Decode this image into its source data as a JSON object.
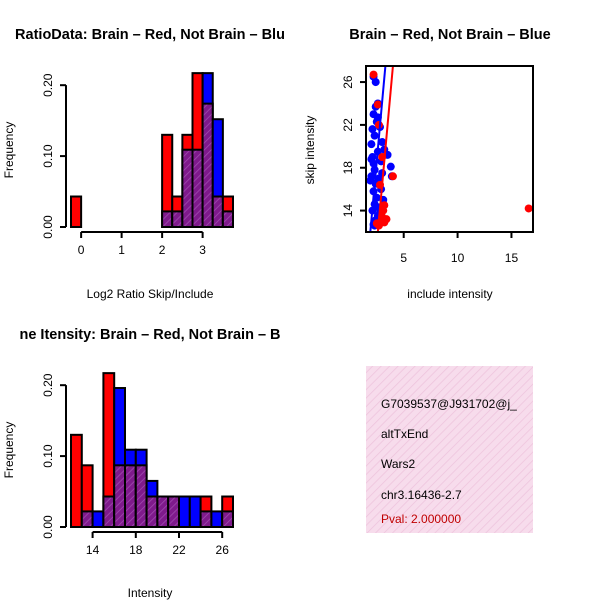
{
  "colors": {
    "red": "#ff0000",
    "blue": "#0000ff",
    "purple": "#7f1a8c",
    "hatch": "#a04ab0",
    "panel_bg": "#f7dcec",
    "panel_hatch": "#eec3dc",
    "pval": "#c00000"
  },
  "chart_data": [
    {
      "type": "bar",
      "title": "RatioData: Brain – Red, Not Brain – Blu",
      "xlabel": "Log2 Ratio Skip/Include",
      "ylabel": "Frequency",
      "xlim": [
        -0.25,
        3.75
      ],
      "ylim": [
        0,
        0.22
      ],
      "bin_width": 0.25,
      "x_ticks": [
        0,
        1,
        2,
        3
      ],
      "x_tick_labels": [
        "0",
        "1",
        "2",
        "3"
      ],
      "y_ticks": [
        0,
        0.1,
        0.2
      ],
      "y_tick_labels": [
        "0.00",
        "0.10",
        "0.20"
      ],
      "bin_starts": [
        -0.25,
        2.0,
        2.25,
        2.5,
        2.75,
        3.0,
        3.25,
        3.5
      ],
      "series": [
        {
          "name": "Brain",
          "color": "red",
          "values": [
            0.043,
            0.13,
            0.043,
            0.13,
            0.217,
            0.174,
            0.043,
            0.043
          ]
        },
        {
          "name": "Not Brain",
          "color": "blue",
          "values": [
            0,
            0.022,
            0.022,
            0.109,
            0.109,
            0.217,
            0.152,
            0.022
          ]
        }
      ]
    },
    {
      "type": "scatter",
      "title": "Brain – Red, Not Brain – Blue",
      "xlabel": "include intensity",
      "ylabel": "skip intensity",
      "xlim": [
        1.5,
        17
      ],
      "ylim": [
        12,
        27.5
      ],
      "x_ticks": [
        5,
        10,
        15
      ],
      "x_tick_labels": [
        "5",
        "10",
        "15"
      ],
      "y_ticks": [
        14,
        18,
        22,
        26
      ],
      "y_tick_labels": [
        "14",
        "18",
        "22",
        "26"
      ],
      "series": [
        {
          "name": "Not Brain",
          "color": "blue",
          "points": [
            [
              2.1,
              19
            ],
            [
              2.2,
              18.4
            ],
            [
              2.3,
              17.8
            ],
            [
              2.0,
              17.2
            ],
            [
              2.4,
              16.5
            ],
            [
              2.2,
              15.8
            ],
            [
              2.5,
              15.2
            ],
            [
              2.3,
              14.6
            ],
            [
              2.1,
              14.0
            ],
            [
              2.6,
              13.5
            ],
            [
              2.4,
              13.1
            ],
            [
              2.2,
              12.7
            ],
            [
              2.0,
              20.2
            ],
            [
              2.3,
              21.0
            ],
            [
              2.1,
              21.6
            ],
            [
              2.5,
              22.3
            ],
            [
              2.2,
              23.0
            ],
            [
              2.4,
              23.7
            ],
            [
              2.6,
              24.0
            ],
            [
              2.8,
              21.8
            ],
            [
              3.0,
              20.4
            ],
            [
              3.2,
              19.7
            ],
            [
              3.5,
              19.2
            ],
            [
              3.8,
              18.1
            ],
            [
              3.9,
              17.2
            ],
            [
              2.9,
              18.6
            ],
            [
              2.7,
              17.0
            ],
            [
              2.9,
              16.0
            ],
            [
              3.1,
              15.0
            ],
            [
              2.7,
              14.3
            ],
            [
              2.5,
              12.9
            ],
            [
              2.3,
              12.6
            ],
            [
              2.0,
              18.8
            ],
            [
              2.6,
              19.5
            ],
            [
              2.2,
              26.5
            ],
            [
              2.4,
              26.0
            ],
            [
              1.9,
              16.8
            ],
            [
              2.8,
              13.8
            ],
            [
              3.0,
              17.5
            ],
            [
              2.6,
              22.7
            ]
          ]
        },
        {
          "name": "Brain",
          "color": "red",
          "points": [
            [
              2.2,
              26.7
            ],
            [
              2.6,
              23.9
            ],
            [
              2.7,
              22.0
            ],
            [
              3.0,
              19.0
            ],
            [
              2.8,
              16.4
            ],
            [
              3.2,
              14.5
            ],
            [
              3.0,
              13.4
            ],
            [
              2.9,
              13.0
            ],
            [
              3.2,
              12.9
            ],
            [
              2.7,
              12.6
            ],
            [
              3.4,
              13.2
            ],
            [
              4.0,
              17.2
            ],
            [
              16.6,
              14.2
            ],
            [
              2.5,
              12.8
            ],
            [
              3.1,
              14.0
            ]
          ]
        }
      ],
      "fit_lines": [
        {
          "name": "Not Brain fit",
          "color": "blue",
          "from": [
            1.9,
            12
          ],
          "to": [
            3.3,
            27.5
          ]
        },
        {
          "name": "Brain fit",
          "color": "red",
          "from": [
            2.6,
            12
          ],
          "to": [
            4.0,
            27.5
          ]
        }
      ]
    },
    {
      "type": "bar",
      "title": "ne Itensity: Brain – Red, Not Brain – B",
      "xlabel": "Intensity",
      "ylabel": "Frequency",
      "xlim": [
        12,
        27
      ],
      "ylim": [
        0,
        0.22
      ],
      "bin_width": 1,
      "x_ticks": [
        14,
        18,
        22,
        26
      ],
      "x_tick_labels": [
        "14",
        "18",
        "22",
        "26"
      ],
      "y_ticks": [
        0,
        0.1,
        0.2
      ],
      "y_tick_labels": [
        "0.00",
        "0.10",
        "0.20"
      ],
      "bin_starts": [
        12,
        13,
        14,
        15,
        16,
        17,
        18,
        19,
        20,
        21,
        22,
        23,
        24,
        25,
        26
      ],
      "series": [
        {
          "name": "Brain",
          "color": "red",
          "values": [
            0.13,
            0.087,
            0,
            0.217,
            0.087,
            0.087,
            0.087,
            0.043,
            0.043,
            0.043,
            0,
            0,
            0.043,
            0,
            0.043
          ]
        },
        {
          "name": "Not Brain",
          "color": "blue",
          "values": [
            0,
            0.022,
            0.022,
            0.043,
            0.196,
            0.109,
            0.109,
            0.065,
            0.043,
            0.043,
            0.043,
            0.043,
            0.022,
            0.022,
            0.022
          ]
        }
      ]
    }
  ],
  "info_panel": {
    "id": "G7039537@J931702@j_",
    "event_type": "altTxEnd",
    "gene": "Wars2",
    "location": "chr3.16436-2.7",
    "pval": "Pval: 2.000000"
  }
}
